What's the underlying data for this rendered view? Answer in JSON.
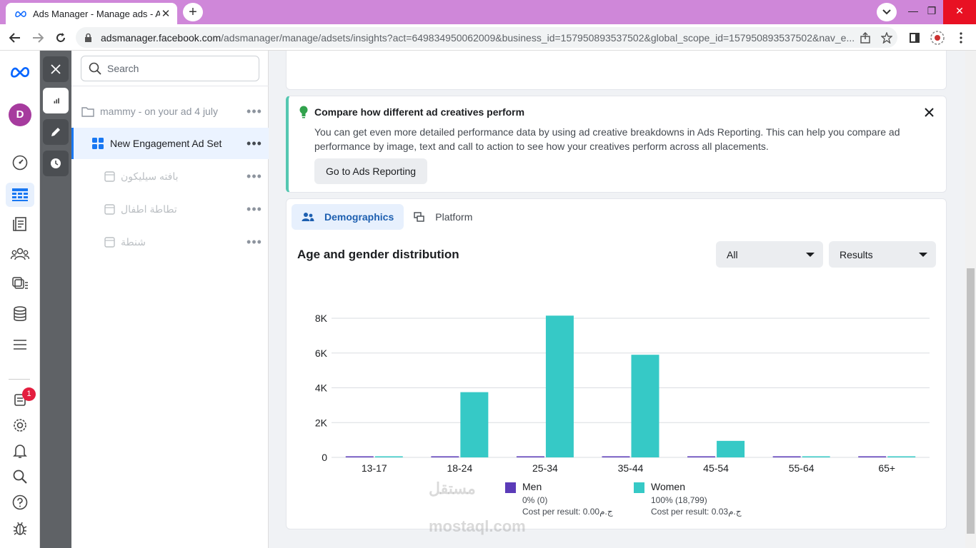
{
  "browser": {
    "tab_title": "Ads Manager - Manage ads - Ad",
    "url_host": "adsmanager.facebook.com",
    "url_path": "/adsmanager/manage/adsets/insights?act=649834950062009&business_id=157950893537502&global_scope_id=157950893537502&nav_e..."
  },
  "rail": {
    "avatar_letter": "D",
    "notification_count": "1"
  },
  "tree": {
    "search_placeholder": "Search",
    "campaign": "mammy - on your ad 4 july",
    "adset": "New Engagement Ad Set",
    "ads": [
      "بافته سيليكون",
      "تطاطة اطفال",
      "شنطة"
    ]
  },
  "tip": {
    "title": "Compare how different ad creatives perform",
    "body": "You can get even more detailed performance data by using ad creative breakdowns in Ads Reporting. This can help you compare ad performance by image, text and call to action to see how your creatives perform across all placements.",
    "button": "Go to Ads Reporting"
  },
  "breakdown": {
    "tab_demographics": "Demographics",
    "tab_platform": "Platform",
    "section_title": "Age and gender distribution",
    "filter_value": "All",
    "metric_value": "Results"
  },
  "chart_data": {
    "type": "bar",
    "categories": [
      "13-17",
      "18-24",
      "25-34",
      "35-44",
      "45-54",
      "55-64",
      "65+"
    ],
    "series": [
      {
        "name": "Men",
        "color": "#5b3bb8",
        "values": [
          0,
          0,
          0,
          0,
          0,
          0,
          0
        ]
      },
      {
        "name": "Women",
        "color": "#36c9c6",
        "values": [
          0,
          3750,
          8150,
          5900,
          950,
          0,
          0
        ]
      }
    ],
    "y_ticks": [
      "0",
      "2K",
      "4K",
      "6K",
      "8K"
    ],
    "ylim": [
      0,
      8000
    ],
    "grid": true
  },
  "legend": {
    "men": {
      "name": "Men",
      "stat": "0% (0)",
      "cost": "Cost per result: 0.00ج.م"
    },
    "women": {
      "name": "Women",
      "stat": "100% (18,799)",
      "cost": "Cost per result: 0.03ج.م"
    }
  },
  "watermark": {
    "line1": "مستقل",
    "line2": "mostaql.com"
  }
}
